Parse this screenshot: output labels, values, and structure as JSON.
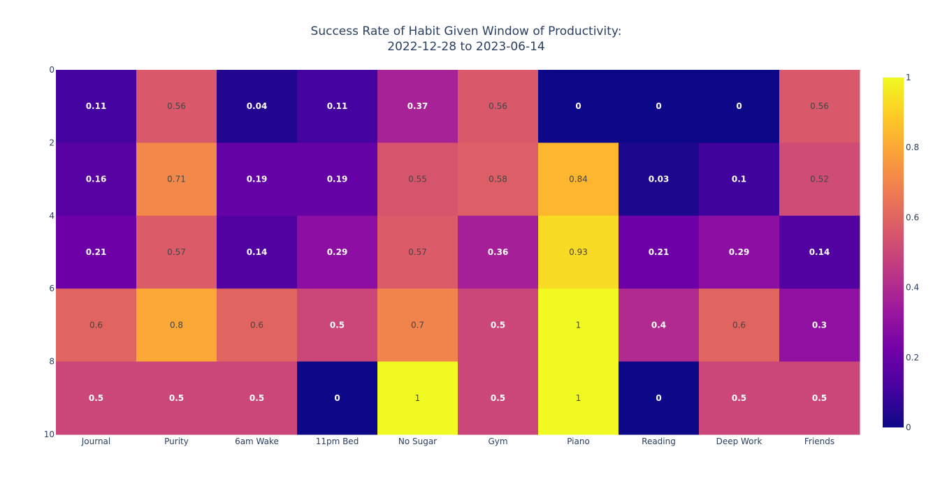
{
  "chart_data": {
    "type": "heatmap",
    "title_lines": [
      "Success Rate of Habit Given Window of Productivity:",
      "2022-12-28 to 2023-06-14"
    ],
    "xlabel": "",
    "ylabel": "",
    "x_categories": [
      "Journal",
      "Purity",
      "6am Wake",
      "11pm Bed",
      "No Sugar",
      "Gym",
      "Piano",
      "Reading",
      "Deep Work",
      "Friends"
    ],
    "y_range": [
      10,
      0
    ],
    "y_ticks": [
      0,
      2,
      4,
      6,
      8,
      10
    ],
    "y_ticks_labels": [
      "0",
      "2",
      "4",
      "6",
      "8",
      "10"
    ],
    "row_bands": [
      [
        0,
        2
      ],
      [
        2,
        4
      ],
      [
        4,
        6
      ],
      [
        6,
        8
      ],
      [
        8,
        10
      ]
    ],
    "z_labels": [
      [
        "0.11",
        "0.56",
        "0.04",
        "0.11",
        "0.37",
        "0.56",
        "0",
        "0",
        "0",
        "0.56"
      ],
      [
        "0.16",
        "0.71",
        "0.19",
        "0.19",
        "0.55",
        "0.58",
        "0.84",
        "0.03",
        "0.1",
        "0.52"
      ],
      [
        "0.21",
        "0.57",
        "0.14",
        "0.29",
        "0.57",
        "0.36",
        "0.93",
        "0.21",
        "0.29",
        "0.14"
      ],
      [
        "0.6",
        "0.8",
        "0.6",
        "0.5",
        "0.7",
        "0.5",
        "1",
        "0.4",
        "0.6",
        "0.3"
      ],
      [
        "0.5",
        "0.5",
        "0.5",
        "0",
        "1",
        "0.5",
        "1",
        "0",
        "0.5",
        "0.5"
      ]
    ],
    "z_range": [
      0,
      1
    ],
    "colorbar": {
      "ticks": [
        0,
        0.2,
        0.4,
        0.6,
        0.8,
        1
      ],
      "tick_labels": [
        "0",
        "0.2",
        "0.4",
        "0.6",
        "0.8",
        "1"
      ],
      "colorscale": "plasma"
    },
    "colors": {
      "plasma": [
        "#0d0887",
        "#46039f",
        "#7201a8",
        "#9c179e",
        "#bd3786",
        "#d8576b",
        "#ed7953",
        "#fb9f3a",
        "#fdca26",
        "#f0f921"
      ],
      "text_dark": "#444444",
      "text_light": "#ffffff",
      "axis_text": "#2a3f5f"
    }
  }
}
